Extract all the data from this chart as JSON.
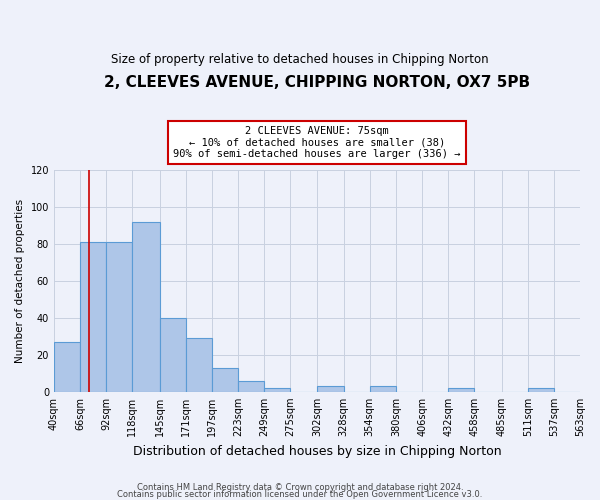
{
  "title": "2, CLEEVES AVENUE, CHIPPING NORTON, OX7 5PB",
  "subtitle": "Size of property relative to detached houses in Chipping Norton",
  "xlabel": "Distribution of detached houses by size in Chipping Norton",
  "ylabel": "Number of detached properties",
  "bin_edges": [
    40,
    66,
    92,
    118,
    145,
    171,
    197,
    223,
    249,
    275,
    302,
    328,
    354,
    380,
    406,
    432,
    458,
    485,
    511,
    537,
    563
  ],
  "bar_heights": [
    27,
    81,
    81,
    92,
    40,
    29,
    13,
    6,
    2,
    0,
    3,
    0,
    3,
    0,
    0,
    2,
    0,
    0,
    2,
    0
  ],
  "bar_color": "#aec6e8",
  "bar_edgecolor": "#5b9bd5",
  "bar_linewidth": 0.8,
  "grid_color": "#c8d0e0",
  "property_line_x": 75,
  "property_line_color": "#cc0000",
  "annotation_line1": "2 CLEEVES AVENUE: 75sqm",
  "annotation_line2": "← 10% of detached houses are smaller (38)",
  "annotation_line3": "90% of semi-detached houses are larger (336) →",
  "annotation_box_facecolor": "#ffffff",
  "annotation_box_edgecolor": "#cc0000",
  "ylim": [
    0,
    120
  ],
  "yticks": [
    0,
    20,
    40,
    60,
    80,
    100,
    120
  ],
  "xtick_labels": [
    "40sqm",
    "66sqm",
    "92sqm",
    "118sqm",
    "145sqm",
    "171sqm",
    "197sqm",
    "223sqm",
    "249sqm",
    "275sqm",
    "302sqm",
    "328sqm",
    "354sqm",
    "380sqm",
    "406sqm",
    "432sqm",
    "458sqm",
    "485sqm",
    "511sqm",
    "537sqm",
    "563sqm"
  ],
  "footer_line1": "Contains HM Land Registry data © Crown copyright and database right 2024.",
  "footer_line2": "Contains public sector information licensed under the Open Government Licence v3.0.",
  "background_color": "#eef1fa",
  "title_fontsize": 11,
  "subtitle_fontsize": 8.5,
  "xlabel_fontsize": 9,
  "ylabel_fontsize": 7.5,
  "tick_fontsize": 7,
  "footer_fontsize": 6,
  "annotation_fontsize": 7.5
}
